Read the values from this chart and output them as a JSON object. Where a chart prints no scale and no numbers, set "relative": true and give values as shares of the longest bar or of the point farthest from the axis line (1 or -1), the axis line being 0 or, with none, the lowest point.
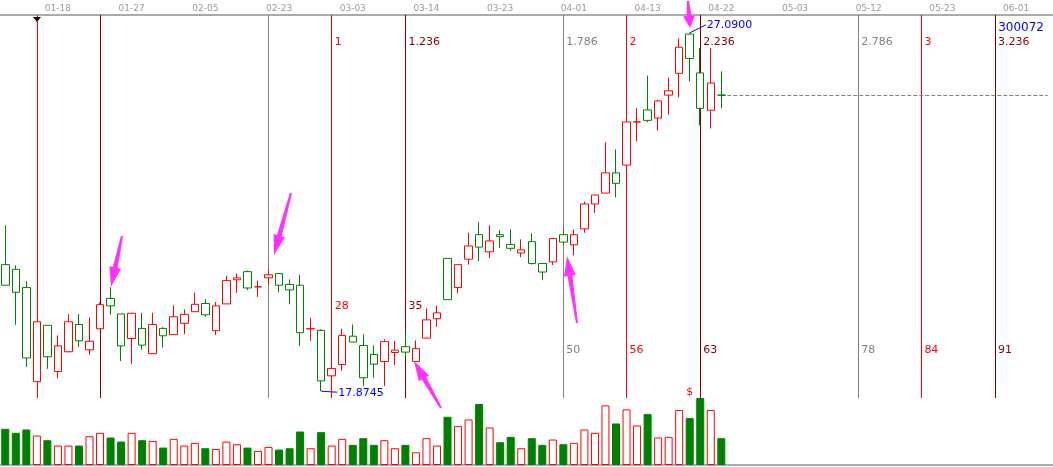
{
  "chart_data": [
    {
      "type": "candlestick",
      "title": "300072",
      "categories": [
        null,
        null,
        null,
        null,
        null,
        "01-18",
        null,
        null,
        null,
        null,
        null,
        null,
        "01-27",
        null,
        null,
        null,
        null,
        null,
        null,
        "02-05",
        null,
        null,
        null,
        null,
        null,
        null,
        "02-23",
        null,
        null,
        null,
        null,
        null,
        null,
        "03-03",
        null,
        null,
        null,
        null,
        null,
        null,
        "03-14",
        null,
        null,
        null,
        null,
        null,
        null,
        "03-23",
        null,
        null,
        null,
        null,
        null,
        null,
        "04-01",
        null,
        null,
        null,
        null,
        null,
        null,
        "04-13",
        null,
        null,
        null,
        null,
        null,
        null,
        "04-22",
        null,
        null,
        null,
        null,
        null,
        null,
        "05-03",
        null,
        null,
        null,
        null,
        null,
        null,
        "05-12",
        null,
        null,
        null,
        null,
        null,
        null,
        "05-23",
        null,
        null,
        null,
        null,
        null,
        null,
        "06-01",
        null,
        null,
        null
      ],
      "ylim": [
        17.7,
        27.55
      ],
      "tick_labels": "x",
      "ohlc": [
        [
          21.13,
          22.14,
          20.6,
          20.6
        ],
        [
          21.01,
          21.11,
          19.58,
          20.42
        ],
        [
          20.54,
          20.7,
          18.5,
          18.73
        ],
        [
          18.12,
          19.66,
          18.12,
          19.66
        ],
        [
          19.57,
          19.57,
          18.45,
          18.76
        ],
        [
          18.38,
          19.31,
          18.21,
          19.04
        ],
        [
          18.89,
          19.86,
          18.87,
          19.66
        ],
        [
          19.59,
          19.86,
          19.01,
          19.17
        ],
        [
          18.94,
          19.77,
          18.81,
          19.16
        ],
        [
          19.48,
          20.16,
          19.48,
          20.1
        ],
        [
          20.26,
          20.55,
          19.84,
          20.07
        ],
        [
          19.86,
          19.86,
          18.65,
          19.04
        ],
        [
          19.23,
          19.89,
          18.58,
          19.88
        ],
        [
          19.49,
          19.89,
          18.94,
          19.06
        ],
        [
          18.84,
          19.89,
          18.84,
          19.59
        ],
        [
          19.49,
          19.52,
          19.0,
          19.3
        ],
        [
          19.33,
          20.08,
          19.33,
          19.79
        ],
        [
          19.62,
          19.98,
          19.34,
          19.85
        ],
        [
          19.92,
          20.41,
          19.92,
          20.11
        ],
        [
          20.13,
          20.24,
          19.79,
          19.84
        ],
        [
          19.43,
          20.17,
          19.32,
          20.07
        ],
        [
          20.12,
          20.84,
          20.12,
          20.72
        ],
        [
          20.74,
          20.9,
          20.41,
          20.79
        ],
        [
          20.95,
          20.98,
          20.48,
          20.53
        ],
        [
          20.56,
          20.72,
          20.3,
          20.56
        ],
        [
          20.79,
          20.99,
          20.6,
          20.87
        ],
        [
          20.9,
          20.9,
          20.42,
          20.6
        ],
        [
          20.62,
          20.75,
          20.11,
          20.48
        ],
        [
          20.6,
          20.87,
          19.04,
          19.38
        ],
        [
          19.48,
          19.76,
          19.17,
          19.48
        ],
        [
          19.44,
          19.47,
          17.8745,
          18.14
        ],
        [
          18.27,
          18.46,
          18.27,
          18.46
        ],
        [
          18.56,
          19.48,
          18.4,
          19.31
        ],
        [
          19.29,
          19.59,
          19.14,
          19.14
        ],
        [
          19.05,
          19.34,
          18.01,
          18.22
        ],
        [
          18.82,
          19.05,
          18.22,
          18.57
        ],
        [
          18.64,
          19.21,
          18.01,
          19.15
        ],
        [
          18.87,
          19.17,
          18.55,
          18.93
        ],
        [
          19.02,
          19.42,
          18.78,
          18.88
        ],
        [
          18.64,
          19.18,
          18.64,
          18.97
        ],
        [
          19.24,
          20.0,
          19.24,
          19.71
        ],
        [
          19.74,
          20.07,
          19.53,
          19.89
        ],
        [
          21.29,
          21.29,
          20.23,
          20.23
        ],
        [
          20.54,
          21.13,
          20.39,
          21.13
        ],
        [
          21.27,
          21.95,
          21.13,
          21.61
        ],
        [
          21.9,
          22.22,
          21.22,
          21.58
        ],
        [
          21.46,
          22.14,
          21.3,
          21.74
        ],
        [
          21.9,
          22.02,
          21.56,
          21.85
        ],
        [
          21.65,
          22.04,
          21.49,
          21.55
        ],
        [
          21.43,
          21.78,
          21.32,
          21.51
        ],
        [
          21.72,
          21.93,
          21.13,
          21.16
        ],
        [
          21.16,
          21.16,
          20.73,
          20.94
        ],
        [
          21.2,
          21.8,
          21.12,
          21.8
        ],
        [
          21.9,
          22.02,
          21.65,
          21.71
        ],
        [
          21.64,
          22.03,
          21.37,
          21.9
        ],
        [
          22.05,
          22.75,
          21.95,
          22.69
        ],
        [
          22.69,
          22.92,
          22.46,
          22.92
        ],
        [
          22.97,
          24.28,
          22.97,
          23.49
        ],
        [
          23.49,
          24.09,
          22.86,
          23.22
        ],
        [
          23.69,
          24.8,
          23.69,
          24.8
        ],
        [
          24.8,
          25.16,
          24.3,
          24.8
        ],
        [
          25.11,
          25.99,
          24.79,
          24.84
        ],
        [
          24.9,
          25.37,
          24.58,
          25.34
        ],
        [
          25.49,
          25.94,
          24.99,
          25.6
        ],
        [
          26.05,
          26.95,
          25.43,
          26.72
        ],
        [
          27.06,
          27.09,
          25.84,
          26.43
        ],
        [
          26.06,
          26.7,
          24.71,
          25.15
        ],
        [
          25.1,
          26.7,
          24.63,
          25.8
        ],
        [
          25.49,
          26.1,
          25.15,
          25.49
        ],
        null,
        null,
        null,
        null,
        null,
        null,
        null,
        null,
        null,
        null,
        null,
        null,
        null,
        null,
        null,
        null,
        null,
        null,
        null,
        null,
        null,
        null,
        null,
        null,
        null,
        null,
        null,
        null,
        null,
        null,
        null
      ],
      "colors": [
        "#008000",
        "#008000",
        "#008000",
        "#ff0000",
        "#008000",
        "#ff0000",
        "#ff0000",
        "#008000",
        "#ff0000",
        "#ff0000",
        "#008000",
        "#008000",
        "#ff0000",
        "#008000",
        "#ff0000",
        "#008000",
        "#ff0000",
        "#ff0000",
        "#ff0000",
        "#008000",
        "#ff0000",
        "#ff0000",
        "#ff0000",
        "#008000",
        "#ff0000",
        "#ff0000",
        "#008000",
        "#008000",
        "#008000",
        "#ff0000",
        "#008000",
        "#ff0000",
        "#ff0000",
        "#008000",
        "#008000",
        "#008000",
        "#ff0000",
        "#ff0000",
        "#008000",
        "#ff0000",
        "#ff0000",
        "#ff0000",
        "#008000",
        "#ff0000",
        "#ff0000",
        "#008000",
        "#ff0000",
        "#008000",
        "#008000",
        "#ff0000",
        "#008000",
        "#008000",
        "#ff0000",
        "#008000",
        "#ff0000",
        "#ff0000",
        "#ff0000",
        "#ff0000",
        "#008000",
        "#ff0000",
        "#ff0000",
        "#008000",
        "#ff0000",
        "#ff0000",
        "#ff0000",
        "#008000",
        "#008000",
        "#ff0000",
        "#008000",
        null,
        null,
        null,
        null,
        null,
        null,
        null,
        null,
        null,
        null,
        null,
        null,
        null,
        null,
        null,
        null,
        null,
        null,
        null,
        null,
        null,
        null,
        null,
        null,
        null,
        null,
        null,
        null,
        null,
        null,
        null
      ],
      "ref_lines": [
        {
          "axis": "y",
          "value": 25.49,
          "color": "#808080",
          "line_style": "dashed"
        }
      ],
      "annotations": [
        "1",
        "1.236",
        "1.786",
        "2",
        "2.236",
        "2.786",
        "3",
        "3.236",
        "28",
        "35",
        "50",
        "56",
        "63",
        "78",
        "84",
        "91",
        "17.8745",
        "27.0900"
      ]
    },
    {
      "type": "bar",
      "relative": true,
      "categories": [
        null,
        null,
        null,
        null,
        null,
        null,
        null,
        null,
        null,
        null,
        null,
        null,
        null,
        null,
        null,
        null,
        null,
        null,
        null,
        null,
        null,
        null,
        null,
        null,
        null,
        null,
        null,
        null,
        null,
        null,
        null,
        null,
        null,
        null,
        null,
        null,
        null,
        null,
        null,
        null,
        null,
        null,
        null,
        null,
        null,
        null,
        null,
        null,
        null,
        null,
        null,
        null,
        null,
        null,
        null,
        null,
        null,
        null,
        null,
        null,
        null,
        null,
        null,
        null,
        null,
        null,
        null,
        null,
        null,
        null,
        null,
        null,
        null,
        null,
        null,
        null,
        null,
        null,
        null,
        null,
        null,
        null,
        null,
        null,
        null,
        null,
        null,
        null,
        null,
        null,
        null,
        null,
        null,
        null,
        null,
        null,
        null,
        null,
        null,
        null
      ],
      "tick_labels": false,
      "values": [
        0.54,
        0.48,
        0.53,
        0.44,
        0.37,
        0.29,
        0.29,
        0.29,
        0.43,
        0.48,
        0.41,
        0.35,
        0.48,
        0.37,
        0.36,
        0.26,
        0.39,
        0.29,
        0.33,
        0.25,
        0.24,
        0.35,
        0.31,
        0.26,
        0.21,
        0.27,
        0.23,
        0.25,
        0.5,
        0.25,
        0.49,
        0.29,
        0.39,
        0.3,
        0.4,
        0.3,
        0.37,
        0.25,
        0.3,
        0.19,
        0.4,
        0.29,
        0.72,
        0.58,
        0.68,
        0.91,
        0.56,
        0.34,
        0.42,
        0.25,
        0.4,
        0.3,
        0.38,
        0.31,
        0.33,
        0.53,
        0.48,
        0.89,
        0.62,
        0.83,
        0.59,
        0.76,
        0.41,
        0.42,
        0.82,
        0.7,
        1,
        0.82,
        0.4,
        null,
        null,
        null,
        null,
        null,
        null,
        null,
        null,
        null,
        null,
        null,
        null,
        null,
        null,
        null,
        null,
        null,
        null,
        null,
        null,
        null,
        null,
        null,
        null,
        null,
        null,
        null,
        null,
        null,
        null,
        null
      ],
      "colors": [
        "#008000",
        "#008000",
        "#008000",
        "#ff0000",
        "#008000",
        "#ff0000",
        "#ff0000",
        "#008000",
        "#ff0000",
        "#ff0000",
        "#008000",
        "#008000",
        "#ff0000",
        "#008000",
        "#ff0000",
        "#008000",
        "#ff0000",
        "#ff0000",
        "#ff0000",
        "#008000",
        "#ff0000",
        "#ff0000",
        "#ff0000",
        "#008000",
        "#ff0000",
        "#ff0000",
        "#008000",
        "#008000",
        "#008000",
        "#ff0000",
        "#008000",
        "#ff0000",
        "#ff0000",
        "#008000",
        "#008000",
        "#008000",
        "#ff0000",
        "#ff0000",
        "#008000",
        "#ff0000",
        "#ff0000",
        "#ff0000",
        "#008000",
        "#ff0000",
        "#ff0000",
        "#008000",
        "#ff0000",
        "#008000",
        "#008000",
        "#ff0000",
        "#008000",
        "#008000",
        "#ff0000",
        "#008000",
        "#ff0000",
        "#ff0000",
        "#ff0000",
        "#ff0000",
        "#008000",
        "#ff0000",
        "#ff0000",
        "#008000",
        "#ff0000",
        "#ff0000",
        "#ff0000",
        "#008000",
        "#008000",
        "#ff0000",
        "#008000",
        null,
        null,
        null,
        null,
        null,
        null,
        null,
        null,
        null,
        null,
        null,
        null,
        null,
        null,
        null,
        null,
        null,
        null,
        null,
        null,
        null,
        null,
        null,
        null,
        null,
        null,
        null,
        null,
        null,
        null,
        null
      ],
      "annotations": [
        "$"
      ]
    }
  ]
}
